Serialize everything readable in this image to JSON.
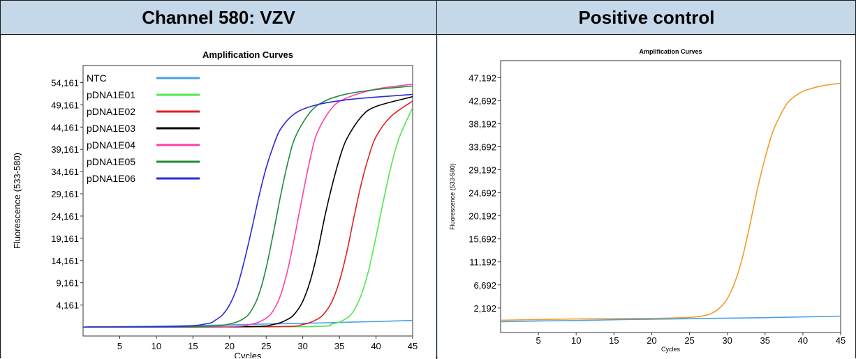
{
  "headers": {
    "left": "Channel 580: VZV",
    "right": "Positive control"
  },
  "chart_data": [
    {
      "type": "line",
      "title": "Amplification Curves",
      "xlabel": "Cycles",
      "ylabel": "Fluorescence (533-580)",
      "xlim": [
        0,
        45
      ],
      "ylim": [
        -2800,
        58000
      ],
      "xticks": [
        5,
        10,
        15,
        20,
        25,
        30,
        35,
        40,
        45
      ],
      "yticks": [
        4161,
        9161,
        14161,
        19161,
        24161,
        29161,
        34161,
        39161,
        44161,
        49161,
        54161
      ],
      "ytick_labels": [
        "4,161",
        "9,161",
        "14,161",
        "19,161",
        "24,161",
        "29,161",
        "34,161",
        "39,161",
        "44,161",
        "49,161",
        "54,161"
      ],
      "legend_position": "top-left",
      "series": [
        {
          "name": "NTC",
          "color": "#4aa0ea",
          "x": [
            0,
            5,
            10,
            15,
            20,
            25,
            30,
            35,
            40,
            45
          ],
          "y": [
            -800,
            -700,
            -600,
            -450,
            -300,
            -100,
            50,
            250,
            450,
            700
          ]
        },
        {
          "name": "pDNA1E01",
          "color": "#4ee84e",
          "x": [
            0,
            30,
            34,
            36,
            37,
            38,
            39,
            40,
            41,
            42,
            43,
            44,
            45
          ],
          "y": [
            -800,
            -700,
            -100,
            1200,
            3000,
            6500,
            12000,
            19500,
            27500,
            35000,
            41000,
            45000,
            48500
          ]
        },
        {
          "name": "pDNA1E02",
          "color": "#e02020",
          "x": [
            0,
            26,
            30,
            32,
            33,
            34,
            35,
            36,
            37,
            38,
            39,
            40,
            42,
            45
          ],
          "y": [
            -800,
            -700,
            -200,
            1000,
            2400,
            5000,
            9500,
            16000,
            24000,
            31500,
            37500,
            42000,
            46500,
            50000
          ]
        },
        {
          "name": "pDNA1E03",
          "color": "#000000",
          "x": [
            0,
            22,
            26,
            28,
            29,
            30,
            31,
            32,
            33,
            34,
            35,
            36,
            38,
            40,
            45
          ],
          "y": [
            -800,
            -700,
            -200,
            1000,
            2400,
            5000,
            9500,
            16000,
            24000,
            31000,
            37000,
            41500,
            46500,
            48800,
            51000
          ]
        },
        {
          "name": "pDNA1E04",
          "color": "#ff3fa6",
          "x": [
            0,
            19,
            23,
            25,
            26,
            27,
            28,
            29,
            30,
            31,
            32,
            34,
            36,
            40,
            45
          ],
          "y": [
            -800,
            -700,
            -150,
            1200,
            3000,
            6500,
            12500,
            20500,
            29000,
            37000,
            43000,
            48500,
            50700,
            52700,
            53800
          ]
        },
        {
          "name": "pDNA1E05",
          "color": "#1f8a3a",
          "x": [
            0,
            16,
            20,
            22,
            23,
            24,
            25,
            26,
            27,
            28,
            29,
            31,
            33,
            36,
            40,
            45
          ],
          "y": [
            -800,
            -650,
            -100,
            1200,
            3000,
            6500,
            12500,
            20500,
            29000,
            36500,
            42000,
            47500,
            50000,
            51600,
            52600,
            53400
          ]
        },
        {
          "name": "pDNA1E06",
          "color": "#2a2ad8",
          "x": [
            0,
            13,
            17,
            18,
            19,
            20,
            21,
            22,
            23,
            24,
            25,
            26,
            27,
            29,
            32,
            36,
            40,
            45
          ],
          "y": [
            -800,
            -650,
            0,
            700,
            1900,
            4200,
            8000,
            14000,
            21000,
            28500,
            35000,
            40000,
            43800,
            47300,
            49200,
            50300,
            50900,
            51500
          ]
        }
      ]
    },
    {
      "type": "line",
      "title": "Amplification Curves",
      "xlabel": "Cycles",
      "ylabel": "Fluorescence (533-580)",
      "xlim": [
        0,
        45
      ],
      "ylim": [
        -2600,
        50500
      ],
      "xticks": [
        5,
        10,
        15,
        20,
        25,
        30,
        35,
        40,
        45
      ],
      "yticks": [
        2192,
        6692,
        11192,
        15692,
        20192,
        24692,
        29192,
        33692,
        38192,
        42692,
        47192
      ],
      "ytick_labels": [
        "2,192",
        "6,692",
        "11,192",
        "15,692",
        "20,192",
        "24,692",
        "29,192",
        "33,692",
        "38,192",
        "42,692",
        "47,192"
      ],
      "series": [
        {
          "color": "#f39a2c",
          "x": [
            0,
            10,
            20,
            25,
            27,
            28,
            29,
            30,
            31,
            32,
            33,
            34,
            35,
            36,
            37,
            38,
            39,
            40,
            41,
            42,
            43,
            45
          ],
          "y": [
            -200,
            50,
            150,
            350,
            700,
            1200,
            2200,
            4000,
            7200,
            12000,
            18500,
            25500,
            31500,
            36500,
            39800,
            42300,
            43600,
            44500,
            45000,
            45400,
            45700,
            46100
          ]
        },
        {
          "color": "#4aa0ea",
          "x": [
            0,
            5,
            10,
            15,
            20,
            25,
            30,
            35,
            40,
            45
          ],
          "y": [
            -500,
            -350,
            -250,
            -100,
            0,
            100,
            200,
            300,
            450,
            600
          ]
        }
      ]
    }
  ]
}
